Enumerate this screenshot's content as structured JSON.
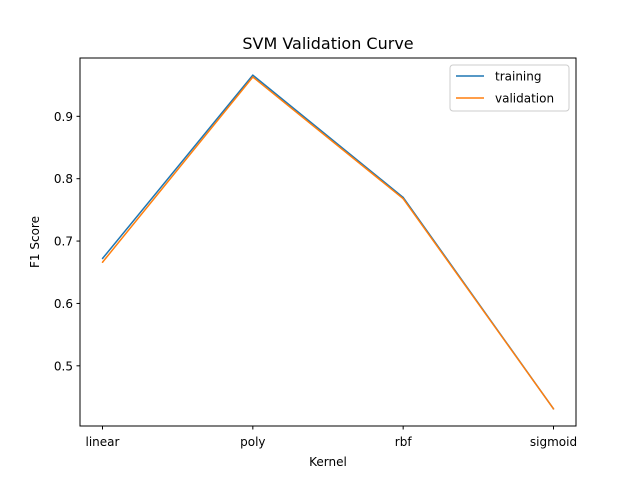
{
  "chart_data": {
    "type": "line",
    "title": "SVM Validation Curve",
    "xlabel": "Kernel",
    "ylabel": "F1 Score",
    "categories": [
      "linear",
      "poly",
      "rbf",
      "sigmoid"
    ],
    "series": [
      {
        "name": "training",
        "values": [
          0.672,
          0.966,
          0.77,
          0.431
        ],
        "color": "#1f77b4"
      },
      {
        "name": "validation",
        "values": [
          0.666,
          0.963,
          0.768,
          0.431
        ],
        "color": "#ff7f0e"
      }
    ],
    "ylim": [
      0.4035,
      0.9935
    ],
    "yticks": [
      0.5,
      0.6,
      0.7,
      0.8,
      0.9
    ],
    "grid": false,
    "legend_position": "top-right"
  }
}
